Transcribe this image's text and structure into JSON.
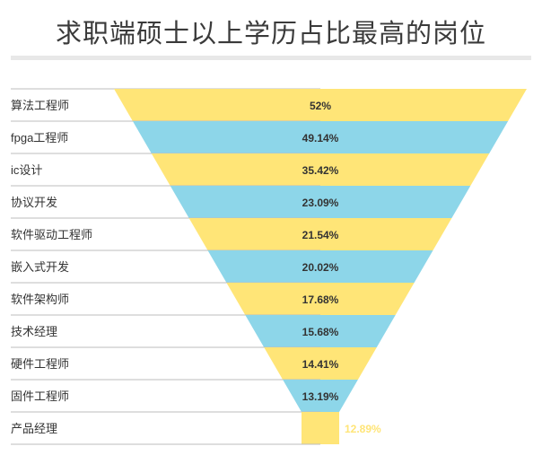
{
  "header": {
    "title": "求职端硕士以上学历占比最高的岗位"
  },
  "colors": {
    "yellow": "#ffe577",
    "blue": "#8dd6e9",
    "label_text": "#333333",
    "outside_label": "#ffe577",
    "separator": "#bdbdbd"
  },
  "chart_data": {
    "type": "funnel",
    "title": "求职端硕士以上学历占比最高的岗位",
    "unit": "%",
    "categories": [
      "算法工程师",
      "fpga工程师",
      "ic设计",
      "协议开发",
      "软件驱动工程师",
      "嵌入式开发",
      "软件架构师",
      "技术经理",
      "硬件工程师",
      "固件工程师",
      "产品经理"
    ],
    "values": [
      52,
      49.14,
      35.42,
      23.09,
      21.54,
      20.02,
      17.68,
      15.68,
      14.41,
      13.19,
      12.89
    ],
    "value_labels": [
      "52%",
      "49.14%",
      "35.42%",
      "23.09%",
      "21.54%",
      "20.02%",
      "17.68%",
      "15.68%",
      "14.41%",
      "13.19%",
      "12.89%"
    ],
    "fill_pattern": [
      "yellow",
      "blue"
    ]
  }
}
